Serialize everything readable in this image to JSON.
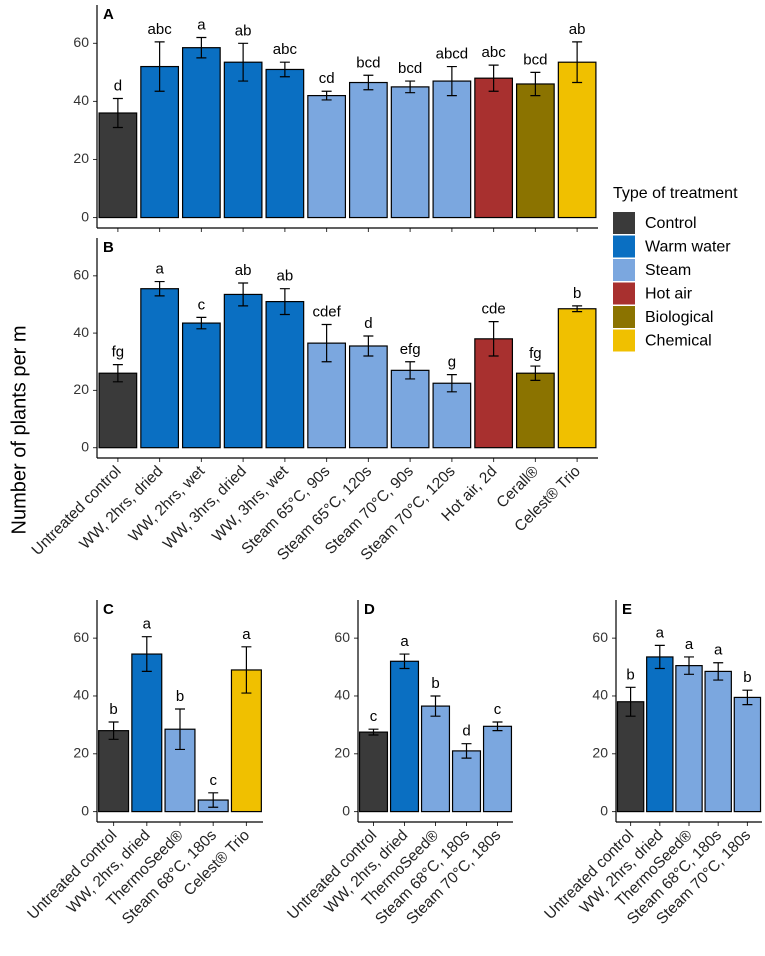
{
  "y_label": "Number of plants per m",
  "legend": {
    "title": "Type of treatment",
    "items": [
      {
        "name": "Control",
        "color": "#3a3a3a"
      },
      {
        "name": "Warm water",
        "color": "#0a6fc2"
      },
      {
        "name": "Steam",
        "color": "#7ba7df"
      },
      {
        "name": "Hot air",
        "color": "#a8302f"
      },
      {
        "name": "Biological",
        "color": "#8b7300"
      },
      {
        "name": "Chemical",
        "color": "#f0c000"
      }
    ]
  },
  "chart_data": [
    {
      "type": "bar",
      "panel": "A",
      "values": [
        36,
        52,
        58.5,
        53.5,
        51,
        42,
        46.5,
        45,
        47,
        48,
        46,
        53.5
      ],
      "errors": [
        5,
        8.5,
        3.5,
        6.5,
        2.5,
        1.5,
        2.5,
        2,
        5,
        4.5,
        4,
        7
      ],
      "annotations": [
        "d",
        "abc",
        "a",
        "ab",
        "abc",
        "cd",
        "bcd",
        "bcd",
        "abcd",
        "abc",
        "bcd",
        "ab"
      ],
      "colors": [
        "#3a3a3a",
        "#0a6fc2",
        "#0a6fc2",
        "#0a6fc2",
        "#0a6fc2",
        "#7ba7df",
        "#7ba7df",
        "#7ba7df",
        "#7ba7df",
        "#a8302f",
        "#8b7300",
        "#f0c000"
      ],
      "ylim": [
        -3.6,
        73.2
      ],
      "yticks": [
        0,
        20,
        40,
        60
      ]
    },
    {
      "type": "bar",
      "panel": "B",
      "categories": [
        "Untreated control",
        "WW, 2hrs, dried",
        "WW, 2hrs, wet",
        "WW, 3hrs, dried",
        "WW, 3hrs, wet",
        "Steam 65°C, 90s",
        "Steam 65°C, 120s",
        "Steam 70°C, 90s",
        "Steam 70°C, 120s",
        "Hot air, 2d",
        "Cerall®",
        "Celest® Trio"
      ],
      "values": [
        26,
        55.5,
        43.5,
        53.5,
        51,
        36.5,
        35.5,
        27,
        22.5,
        38,
        26,
        48.5
      ],
      "errors": [
        3,
        2.5,
        2,
        4,
        4.5,
        6.5,
        3.5,
        3,
        3,
        6,
        2.5,
        1
      ],
      "annotations": [
        "fg",
        "a",
        "c",
        "ab",
        "ab",
        "cdef",
        "d",
        "efg",
        "g",
        "cde",
        "fg",
        "b"
      ],
      "colors": [
        "#3a3a3a",
        "#0a6fc2",
        "#0a6fc2",
        "#0a6fc2",
        "#0a6fc2",
        "#7ba7df",
        "#7ba7df",
        "#7ba7df",
        "#7ba7df",
        "#a8302f",
        "#8b7300",
        "#f0c000"
      ],
      "ylim": [
        -3.6,
        73.2
      ],
      "yticks": [
        0,
        20,
        40,
        60
      ]
    },
    {
      "type": "bar",
      "panel": "C",
      "categories": [
        "Untreated control",
        "WW, 2hrs, dried",
        "ThermoSeed®",
        "Steam 68°C, 180s",
        "Celest® Trio"
      ],
      "values": [
        28,
        54.5,
        28.5,
        4,
        49
      ],
      "errors": [
        3,
        6,
        7,
        2.5,
        8
      ],
      "annotations": [
        "b",
        "a",
        "b",
        "c",
        "a"
      ],
      "colors": [
        "#3a3a3a",
        "#0a6fc2",
        "#7ba7df",
        "#7ba7df",
        "#f0c000"
      ],
      "ylim": [
        -3.6,
        73.2
      ],
      "yticks": [
        0,
        20,
        40,
        60
      ]
    },
    {
      "type": "bar",
      "panel": "D",
      "categories": [
        "Untreated control",
        "WW, 2hrs, dried",
        "ThermoSeed®",
        "Steam 68°C, 180s",
        "Steam 70°C, 180s"
      ],
      "values": [
        27.5,
        52,
        36.5,
        21,
        29.5
      ],
      "errors": [
        1,
        2.5,
        3.5,
        2.5,
        1.5
      ],
      "annotations": [
        "c",
        "a",
        "b",
        "d",
        "c"
      ],
      "colors": [
        "#3a3a3a",
        "#0a6fc2",
        "#7ba7df",
        "#7ba7df",
        "#7ba7df"
      ],
      "ylim": [
        -3.6,
        73.2
      ],
      "yticks": [
        0,
        20,
        40,
        60
      ]
    },
    {
      "type": "bar",
      "panel": "E",
      "categories": [
        "Untreated control",
        "WW, 2hrs, dried",
        "ThermoSeed®",
        "Steam 68°C, 180s",
        "Steam 70°C, 180s"
      ],
      "values": [
        38,
        53.5,
        50.5,
        48.5,
        39.5
      ],
      "errors": [
        5,
        4,
        3,
        3,
        2.5
      ],
      "annotations": [
        "b",
        "a",
        "a",
        "a",
        "b"
      ],
      "colors": [
        "#3a3a3a",
        "#0a6fc2",
        "#7ba7df",
        "#7ba7df",
        "#7ba7df"
      ],
      "ylim": [
        -3.6,
        73.2
      ],
      "yticks": [
        0,
        20,
        40,
        60
      ]
    }
  ]
}
